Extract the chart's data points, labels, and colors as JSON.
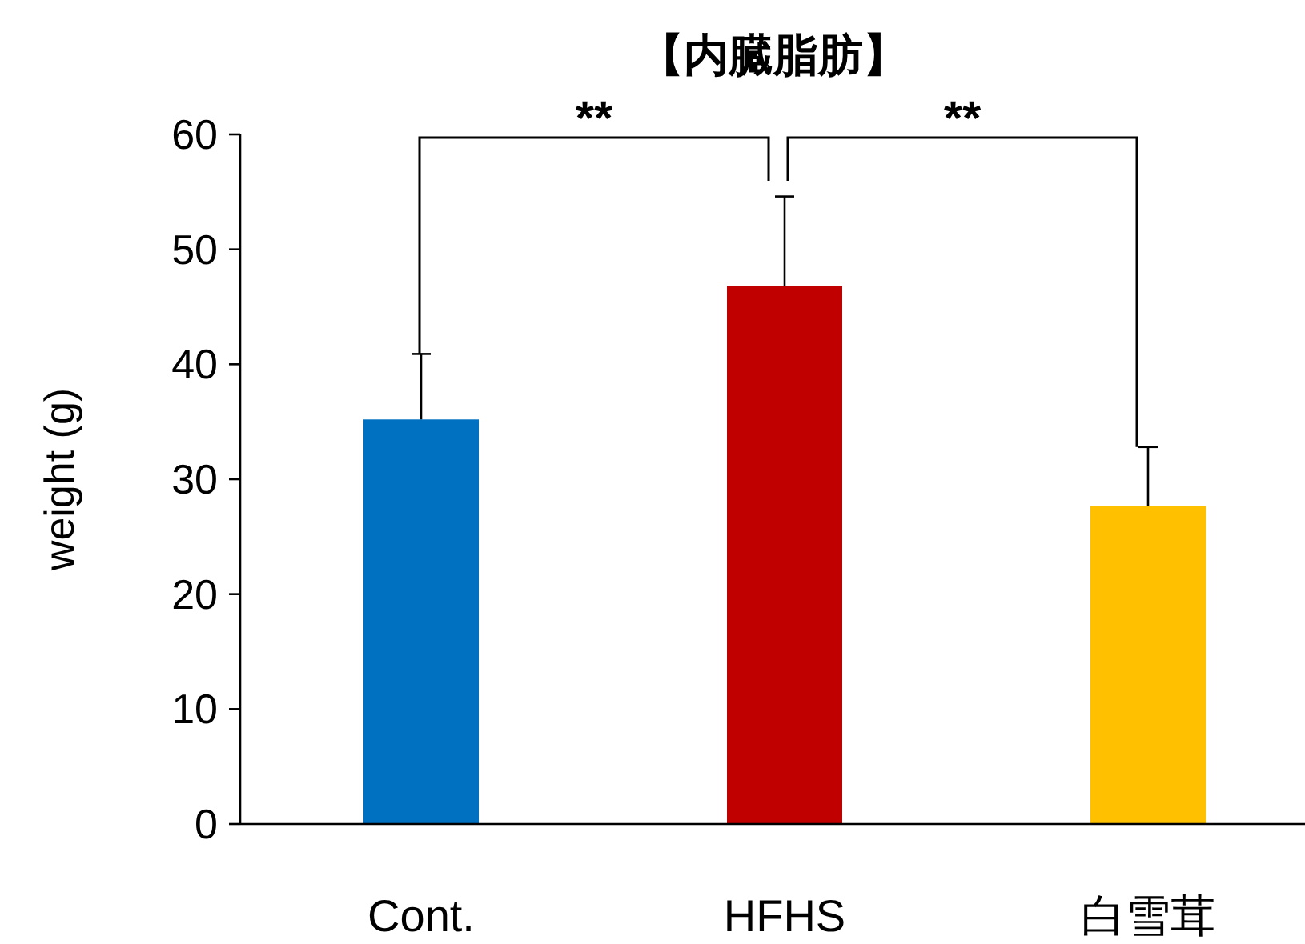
{
  "chart_data": {
    "type": "bar",
    "title": "【内臓脂肪】",
    "ylabel": "weight (g)",
    "categories": [
      "Cont.",
      "HFHS",
      "白雪茸"
    ],
    "values": [
      35.2,
      46.8,
      27.7
    ],
    "colors": [
      "#0070c0",
      "#c00000",
      "#ffc000"
    ],
    "errors": [
      [
        35.2,
        40.9
      ],
      [
        46.8,
        54.6
      ],
      [
        27.7,
        32.8
      ]
    ],
    "ylim": [
      0,
      60
    ],
    "yticks": [
      0,
      10,
      20,
      30,
      40,
      50,
      60
    ],
    "grid": false,
    "annotations": [
      "**",
      "**"
    ]
  }
}
